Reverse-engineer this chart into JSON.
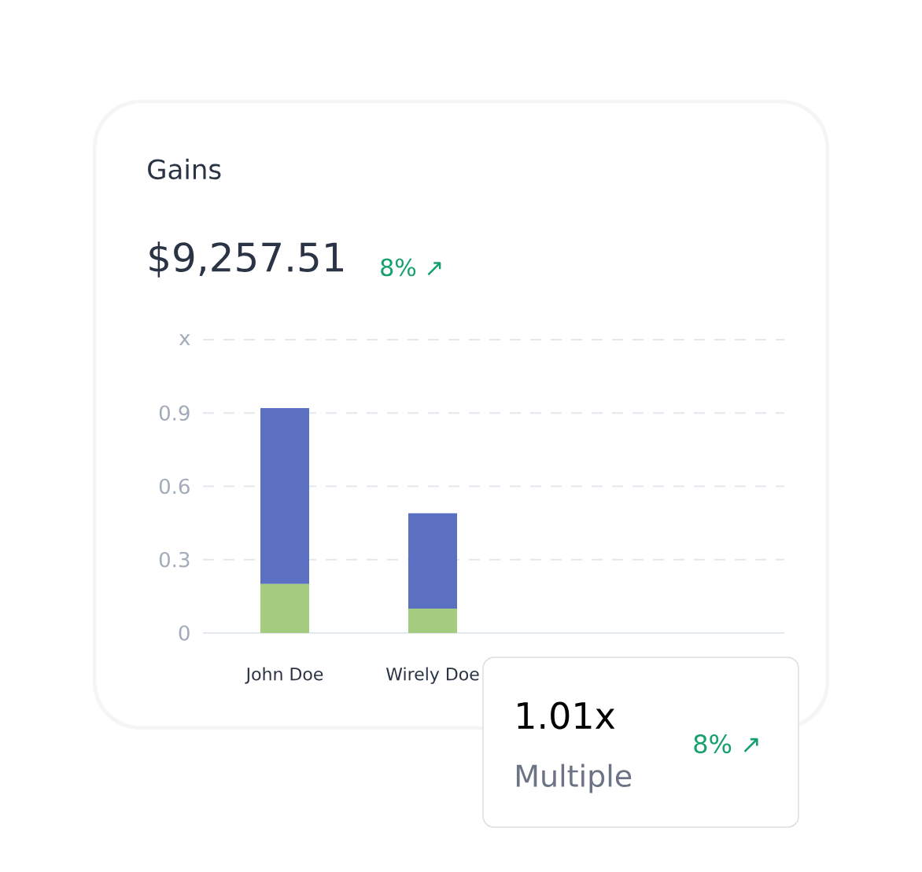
{
  "chart_data": {
    "type": "bar",
    "title": "Gains",
    "annotations": [
      "$9,257.51",
      "8% ↗",
      "1.01x",
      "Multiple",
      "8% ↗"
    ],
    "categories": [
      "John Doe",
      "Wirely Doe",
      null,
      null
    ],
    "stacked": true,
    "series": [
      {
        "color": "#a3cc7e",
        "values": [
          0.2,
          0.1,
          null,
          null
        ]
      },
      {
        "color": "#5b70c1",
        "values": [
          0.72,
          0.39,
          null,
          null
        ]
      }
    ],
    "ylim": [
      0,
      1.2
    ],
    "yticks": [
      0,
      0.3,
      0.6,
      0.9,
      {
        "value": 1.2,
        "label": "x"
      }
    ],
    "grid": "y"
  }
}
